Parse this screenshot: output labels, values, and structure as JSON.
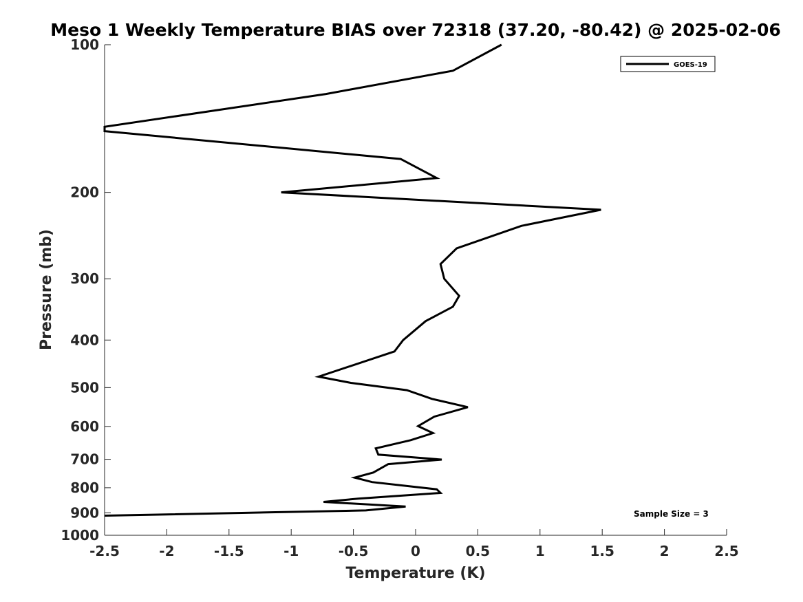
{
  "chart_data": {
    "type": "line",
    "title": "Meso 1 Weekly Temperature BIAS over 72318 (37.20, -80.42) @ 2025-02-06",
    "xlabel": "Temperature (K)",
    "ylabel": "Pressure (mb)",
    "xlim": [
      -2.5,
      2.5
    ],
    "ylim": [
      1000,
      100
    ],
    "y_scale": "log",
    "y_reversed": true,
    "grid": false,
    "legend_placement": "top-right",
    "x_ticks": [
      -2.5,
      -2,
      -1.5,
      -1,
      -0.5,
      0,
      0.5,
      1,
      1.5,
      2,
      2.5
    ],
    "x_tick_labels": [
      "-2.5",
      "-2",
      "-1.5",
      "-1",
      "-0.5",
      "0",
      "0.5",
      "1",
      "1.5",
      "2",
      "2.5"
    ],
    "y_ticks": [
      100,
      200,
      300,
      400,
      500,
      600,
      700,
      800,
      900,
      1000
    ],
    "y_tick_labels": [
      "100",
      "200",
      "300",
      "400",
      "500",
      "600",
      "700",
      "800",
      "900",
      "1000"
    ],
    "series": [
      {
        "name": "GOES-19",
        "color": "#000000",
        "points": [
          {
            "x": 0.69,
            "p": 100
          },
          {
            "x": 0.3,
            "p": 113
          },
          {
            "x": -0.72,
            "p": 126
          },
          {
            "x": -2.5,
            "p": 147
          },
          {
            "x": -2.5,
            "p": 150
          },
          {
            "x": -0.12,
            "p": 171
          },
          {
            "x": 0.17,
            "p": 187
          },
          {
            "x": -1.08,
            "p": 200
          },
          {
            "x": 1.49,
            "p": 217
          },
          {
            "x": 0.85,
            "p": 234
          },
          {
            "x": 0.33,
            "p": 260
          },
          {
            "x": 0.2,
            "p": 280
          },
          {
            "x": 0.23,
            "p": 300
          },
          {
            "x": 0.35,
            "p": 325
          },
          {
            "x": 0.3,
            "p": 342
          },
          {
            "x": 0.08,
            "p": 366
          },
          {
            "x": -0.1,
            "p": 400
          },
          {
            "x": -0.17,
            "p": 422
          },
          {
            "x": -0.78,
            "p": 475
          },
          {
            "x": -0.52,
            "p": 489
          },
          {
            "x": -0.07,
            "p": 506
          },
          {
            "x": 0.13,
            "p": 527
          },
          {
            "x": 0.42,
            "p": 548
          },
          {
            "x": 0.15,
            "p": 573
          },
          {
            "x": 0.02,
            "p": 599
          },
          {
            "x": 0.14,
            "p": 619
          },
          {
            "x": -0.04,
            "p": 640
          },
          {
            "x": -0.32,
            "p": 665
          },
          {
            "x": -0.3,
            "p": 685
          },
          {
            "x": 0.21,
            "p": 701
          },
          {
            "x": -0.22,
            "p": 716
          },
          {
            "x": -0.34,
            "p": 745
          },
          {
            "x": -0.49,
            "p": 763
          },
          {
            "x": -0.35,
            "p": 779
          },
          {
            "x": 0.17,
            "p": 806
          },
          {
            "x": 0.2,
            "p": 820
          },
          {
            "x": -0.46,
            "p": 842
          },
          {
            "x": -0.74,
            "p": 855
          },
          {
            "x": -0.08,
            "p": 874
          },
          {
            "x": -0.4,
            "p": 890
          },
          {
            "x": -2.5,
            "p": 912
          }
        ]
      }
    ],
    "annotations": [
      {
        "text": "Sample Size = 3",
        "placement": "bottom-right"
      }
    ]
  }
}
